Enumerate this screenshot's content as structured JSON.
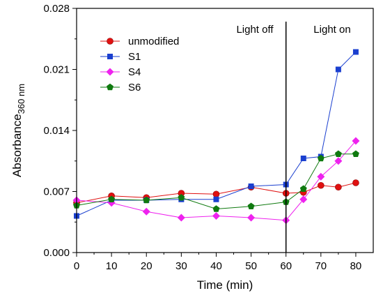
{
  "chart_data": {
    "type": "line",
    "x": [
      0,
      10,
      20,
      30,
      40,
      50,
      60,
      65,
      70,
      75,
      80
    ],
    "xlabel": "Time (min)",
    "ylabel": "Absorbance",
    "ylabel_subscript": "360 nm",
    "xlim": [
      0,
      85
    ],
    "ylim": [
      0.0,
      0.028
    ],
    "xticks": [
      0,
      10,
      20,
      30,
      40,
      50,
      60,
      70,
      80
    ],
    "yticks": [
      0.0,
      0.007,
      0.014,
      0.021,
      0.028
    ],
    "ytick_labels": [
      "0.000",
      "0.007",
      "0.014",
      "0.021",
      "0.028"
    ],
    "legend_position": "upper-left",
    "grid": false,
    "series": [
      {
        "name": "unmodified",
        "color": "#e01010",
        "marker": "circle",
        "values": [
          0.0057,
          0.0065,
          0.0063,
          0.0068,
          0.0067,
          0.0075,
          0.0068,
          0.0069,
          0.0077,
          0.0075,
          0.008
        ]
      },
      {
        "name": "S1",
        "color": "#1a3fcf",
        "marker": "square",
        "values": [
          0.0042,
          0.006,
          0.006,
          0.0061,
          0.0061,
          0.0076,
          0.0078,
          0.0108,
          0.011,
          0.021,
          0.023
        ]
      },
      {
        "name": "S4",
        "color": "#ee22ee",
        "marker": "diamond",
        "values": [
          0.006,
          0.0057,
          0.0047,
          0.004,
          0.0042,
          0.004,
          0.0037,
          0.0061,
          0.0087,
          0.0105,
          0.0128
        ]
      },
      {
        "name": "S6",
        "color": "#0f7a0f",
        "marker": "pentagon",
        "values": [
          0.0054,
          0.0061,
          0.006,
          0.0063,
          0.005,
          0.0053,
          0.0058,
          0.0073,
          0.0108,
          0.0113,
          0.0113
        ]
      }
    ],
    "annotations": {
      "divider_x": 60,
      "left_label": "Light off",
      "right_label": "Light on"
    }
  }
}
